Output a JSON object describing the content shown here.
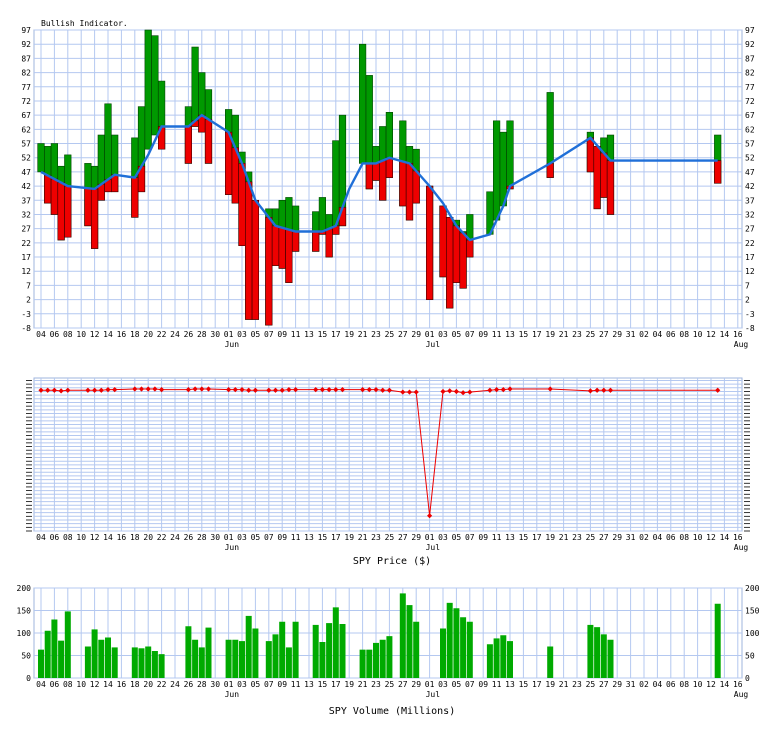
{
  "dates": [
    "04",
    "06",
    "08",
    "10",
    "12",
    "14",
    "16",
    "18",
    "20",
    "22",
    "24",
    "26",
    "28",
    "30",
    "01",
    "03",
    "05",
    "07",
    "09",
    "11",
    "13",
    "15",
    "17",
    "19",
    "21",
    "23",
    "25",
    "27",
    "29",
    "01",
    "03",
    "05",
    "07",
    "09",
    "11",
    "13",
    "15",
    "17",
    "19",
    "21",
    "23",
    "25",
    "27",
    "29",
    "31",
    "02",
    "04",
    "06",
    "08",
    "10",
    "12",
    "14",
    "16"
  ],
  "months": [
    {
      "label": "Jun",
      "after_index": 14
    },
    {
      "label": "Jul",
      "after_index": 29
    },
    {
      "label": "Aug",
      "after_index": 52
    }
  ],
  "colors": {
    "grid": "#b4c8f0",
    "up": "#009900",
    "down": "#ee0000",
    "line": "#1f6fd8",
    "price": "#ee0000",
    "volume": "#00aa00"
  },
  "chart_data": [
    {
      "type": "bar",
      "title": "Bullish Indicator.",
      "ylim": [
        -8,
        97
      ],
      "yticks": [
        97,
        92,
        87,
        82,
        77,
        72,
        67,
        62,
        57,
        52,
        47,
        42,
        37,
        32,
        27,
        22,
        17,
        12,
        7,
        2,
        -3,
        -8
      ],
      "grid": true,
      "series": [
        {
          "x": 0,
          "open": 47,
          "close": 57
        },
        {
          "x": 0.5,
          "open": 36,
          "close": 56
        },
        {
          "x": 1,
          "open": 32,
          "close": 57
        },
        {
          "x": 1.5,
          "open": 23,
          "close": 49
        },
        {
          "x": 2,
          "open": 24,
          "close": 53
        },
        {
          "x": 3.5,
          "open": 28,
          "close": 50
        },
        {
          "x": 4,
          "open": 20,
          "close": 49
        },
        {
          "x": 4.5,
          "open": 37,
          "close": 60
        },
        {
          "x": 5,
          "open": 40,
          "close": 71
        },
        {
          "x": 5.5,
          "open": 40,
          "close": 60
        },
        {
          "x": 7,
          "open": 31,
          "close": 59
        },
        {
          "x": 7.5,
          "open": 40,
          "close": 70
        },
        {
          "x": 8,
          "open": 55,
          "close": 97
        },
        {
          "x": 8.5,
          "open": 60,
          "close": 95
        },
        {
          "x": 9,
          "open": 55,
          "close": 79
        },
        {
          "x": 11,
          "open": 50,
          "close": 70
        },
        {
          "x": 11.5,
          "open": 63,
          "close": 91
        },
        {
          "x": 12,
          "open": 61,
          "close": 82
        },
        {
          "x": 12.5,
          "open": 50,
          "close": 76
        },
        {
          "x": 14,
          "open": 39,
          "close": 69
        },
        {
          "x": 14.5,
          "open": 36,
          "close": 67
        },
        {
          "x": 15,
          "open": 21,
          "close": 54
        },
        {
          "x": 15.5,
          "open": -5,
          "close": 47
        },
        {
          "x": 16,
          "open": -5,
          "close": 37
        },
        {
          "x": 17,
          "open": -7,
          "close": 34
        },
        {
          "x": 17.5,
          "open": 14,
          "close": 34
        },
        {
          "x": 18,
          "open": 13,
          "close": 37
        },
        {
          "x": 18.5,
          "open": 8,
          "close": 38
        },
        {
          "x": 19,
          "open": 19,
          "close": 35
        },
        {
          "x": 20.5,
          "open": 19,
          "close": 33
        },
        {
          "x": 21,
          "open": 25,
          "close": 38
        },
        {
          "x": 21.5,
          "open": 17,
          "close": 32
        },
        {
          "x": 22,
          "open": 25,
          "close": 58
        },
        {
          "x": 22.5,
          "open": 28,
          "close": 67
        },
        {
          "x": 24,
          "open": 50,
          "close": 92
        },
        {
          "x": 24.5,
          "open": 41,
          "close": 81
        },
        {
          "x": 25,
          "open": 44,
          "close": 56
        },
        {
          "x": 25.5,
          "open": 37,
          "close": 63
        },
        {
          "x": 26,
          "open": 45,
          "close": 68
        },
        {
          "x": 27,
          "open": 35,
          "close": 65
        },
        {
          "x": 27.5,
          "open": 30,
          "close": 56
        },
        {
          "x": 28,
          "open": 36,
          "close": 55
        },
        {
          "x": 29,
          "open": 2,
          "close": 42
        },
        {
          "x": 30,
          "open": 10,
          "close": 35
        },
        {
          "x": 30.5,
          "open": -1,
          "close": 31
        },
        {
          "x": 31,
          "open": 8,
          "close": 30
        },
        {
          "x": 31.5,
          "open": 6,
          "close": 26
        },
        {
          "x": 32,
          "open": 17,
          "close": 32
        },
        {
          "x": 33.5,
          "open": 25,
          "close": 40
        },
        {
          "x": 34,
          "open": 30,
          "close": 65
        },
        {
          "x": 34.5,
          "open": 35,
          "close": 61
        },
        {
          "x": 35,
          "open": 41,
          "close": 65
        },
        {
          "x": 38,
          "open": 45,
          "close": 75
        },
        {
          "x": 41,
          "open": 47,
          "close": 61
        },
        {
          "x": 41.5,
          "open": 34,
          "close": 56
        },
        {
          "x": 42,
          "open": 38,
          "close": 59
        },
        {
          "x": 42.5,
          "open": 32,
          "close": 60
        },
        {
          "x": 50.5,
          "open": 43,
          "close": 60
        }
      ],
      "moving_average": [
        {
          "x": 0,
          "y": 47
        },
        {
          "x": 2,
          "y": 42
        },
        {
          "x": 4,
          "y": 41
        },
        {
          "x": 5.5,
          "y": 46
        },
        {
          "x": 7,
          "y": 45
        },
        {
          "x": 8,
          "y": 53
        },
        {
          "x": 9,
          "y": 63
        },
        {
          "x": 11,
          "y": 63
        },
        {
          "x": 12,
          "y": 67
        },
        {
          "x": 14,
          "y": 61
        },
        {
          "x": 15,
          "y": 50
        },
        {
          "x": 16,
          "y": 37
        },
        {
          "x": 17.5,
          "y": 28
        },
        {
          "x": 19,
          "y": 26
        },
        {
          "x": 21,
          "y": 26
        },
        {
          "x": 22,
          "y": 28
        },
        {
          "x": 23,
          "y": 41
        },
        {
          "x": 24,
          "y": 50
        },
        {
          "x": 25,
          "y": 50
        },
        {
          "x": 26,
          "y": 52
        },
        {
          "x": 27.5,
          "y": 50
        },
        {
          "x": 29,
          "y": 42
        },
        {
          "x": 30,
          "y": 36
        },
        {
          "x": 31,
          "y": 28
        },
        {
          "x": 32,
          "y": 23
        },
        {
          "x": 33.5,
          "y": 25
        },
        {
          "x": 34.5,
          "y": 35
        },
        {
          "x": 35,
          "y": 42
        },
        {
          "x": 38,
          "y": 50
        },
        {
          "x": 41,
          "y": 59
        },
        {
          "x": 42.5,
          "y": 51
        },
        {
          "x": 50.5,
          "y": 51
        }
      ]
    },
    {
      "type": "line",
      "title": "SPY Price ($)",
      "ylim": [
        -20,
        230
      ],
      "grid": true,
      "values": [
        {
          "x": 0,
          "y": 210
        },
        {
          "x": 0.5,
          "y": 210
        },
        {
          "x": 1,
          "y": 210
        },
        {
          "x": 1.5,
          "y": 209
        },
        {
          "x": 2,
          "y": 210
        },
        {
          "x": 3.5,
          "y": 210
        },
        {
          "x": 4,
          "y": 210
        },
        {
          "x": 4.5,
          "y": 210
        },
        {
          "x": 5,
          "y": 211
        },
        {
          "x": 5.5,
          "y": 211
        },
        {
          "x": 7,
          "y": 212
        },
        {
          "x": 7.5,
          "y": 212
        },
        {
          "x": 8,
          "y": 212
        },
        {
          "x": 8.5,
          "y": 212
        },
        {
          "x": 9,
          "y": 211
        },
        {
          "x": 11,
          "y": 211
        },
        {
          "x": 11.5,
          "y": 212
        },
        {
          "x": 12,
          "y": 212
        },
        {
          "x": 12.5,
          "y": 212
        },
        {
          "x": 14,
          "y": 211
        },
        {
          "x": 14.5,
          "y": 211
        },
        {
          "x": 15,
          "y": 211
        },
        {
          "x": 15.5,
          "y": 210
        },
        {
          "x": 16,
          "y": 210
        },
        {
          "x": 17,
          "y": 210
        },
        {
          "x": 17.5,
          "y": 210
        },
        {
          "x": 18,
          "y": 210
        },
        {
          "x": 18.5,
          "y": 211
        },
        {
          "x": 19,
          "y": 211
        },
        {
          "x": 20.5,
          "y": 211
        },
        {
          "x": 21,
          "y": 211
        },
        {
          "x": 21.5,
          "y": 211
        },
        {
          "x": 22,
          "y": 211
        },
        {
          "x": 22.5,
          "y": 211
        },
        {
          "x": 24,
          "y": 211
        },
        {
          "x": 24.5,
          "y": 211
        },
        {
          "x": 25,
          "y": 211
        },
        {
          "x": 25.5,
          "y": 210
        },
        {
          "x": 26,
          "y": 210
        },
        {
          "x": 27,
          "y": 207
        },
        {
          "x": 27.5,
          "y": 207
        },
        {
          "x": 28,
          "y": 207
        },
        {
          "x": 29,
          "y": 5
        },
        {
          "x": 30,
          "y": 208
        },
        {
          "x": 30.5,
          "y": 209
        },
        {
          "x": 31,
          "y": 208
        },
        {
          "x": 31.5,
          "y": 206
        },
        {
          "x": 32,
          "y": 207
        },
        {
          "x": 33.5,
          "y": 210
        },
        {
          "x": 34,
          "y": 211
        },
        {
          "x": 34.5,
          "y": 211
        },
        {
          "x": 35,
          "y": 212
        },
        {
          "x": 38,
          "y": 212
        },
        {
          "x": 41,
          "y": 209
        },
        {
          "x": 41.5,
          "y": 210
        },
        {
          "x": 42,
          "y": 210
        },
        {
          "x": 42.5,
          "y": 210
        },
        {
          "x": 50.5,
          "y": 210
        }
      ]
    },
    {
      "type": "bar",
      "title": "SPY Volume (Millions)",
      "ylim": [
        0,
        200
      ],
      "yticks": [
        200,
        150,
        100,
        50,
        0
      ],
      "grid": true,
      "values": [
        {
          "x": 0,
          "y": 63
        },
        {
          "x": 0.5,
          "y": 105
        },
        {
          "x": 1,
          "y": 130
        },
        {
          "x": 1.5,
          "y": 83
        },
        {
          "x": 2,
          "y": 148
        },
        {
          "x": 3.5,
          "y": 70
        },
        {
          "x": 4,
          "y": 108
        },
        {
          "x": 4.5,
          "y": 85
        },
        {
          "x": 5,
          "y": 90
        },
        {
          "x": 5.5,
          "y": 68
        },
        {
          "x": 7,
          "y": 68
        },
        {
          "x": 7.5,
          "y": 66
        },
        {
          "x": 8,
          "y": 70
        },
        {
          "x": 8.5,
          "y": 60
        },
        {
          "x": 9,
          "y": 53
        },
        {
          "x": 11,
          "y": 115
        },
        {
          "x": 11.5,
          "y": 85
        },
        {
          "x": 12,
          "y": 68
        },
        {
          "x": 12.5,
          "y": 112
        },
        {
          "x": 14,
          "y": 85
        },
        {
          "x": 14.5,
          "y": 85
        },
        {
          "x": 15,
          "y": 82
        },
        {
          "x": 15.5,
          "y": 138
        },
        {
          "x": 16,
          "y": 110
        },
        {
          "x": 17,
          "y": 82
        },
        {
          "x": 17.5,
          "y": 97
        },
        {
          "x": 18,
          "y": 125
        },
        {
          "x": 18.5,
          "y": 68
        },
        {
          "x": 19,
          "y": 125
        },
        {
          "x": 20.5,
          "y": 118
        },
        {
          "x": 21,
          "y": 80
        },
        {
          "x": 21.5,
          "y": 122
        },
        {
          "x": 22,
          "y": 157
        },
        {
          "x": 22.5,
          "y": 120
        },
        {
          "x": 24,
          "y": 63
        },
        {
          "x": 24.5,
          "y": 63
        },
        {
          "x": 25,
          "y": 78
        },
        {
          "x": 25.5,
          "y": 85
        },
        {
          "x": 26,
          "y": 93
        },
        {
          "x": 27,
          "y": 188
        },
        {
          "x": 27.5,
          "y": 162
        },
        {
          "x": 28,
          "y": 125
        },
        {
          "x": 30,
          "y": 110
        },
        {
          "x": 30.5,
          "y": 167
        },
        {
          "x": 31,
          "y": 155
        },
        {
          "x": 31.5,
          "y": 135
        },
        {
          "x": 32,
          "y": 125
        },
        {
          "x": 33.5,
          "y": 75
        },
        {
          "x": 34,
          "y": 88
        },
        {
          "x": 34.5,
          "y": 95
        },
        {
          "x": 35,
          "y": 82
        },
        {
          "x": 38,
          "y": 70
        },
        {
          "x": 41,
          "y": 118
        },
        {
          "x": 41.5,
          "y": 113
        },
        {
          "x": 42,
          "y": 97
        },
        {
          "x": 42.5,
          "y": 85
        },
        {
          "x": 50.5,
          "y": 165
        }
      ]
    }
  ]
}
